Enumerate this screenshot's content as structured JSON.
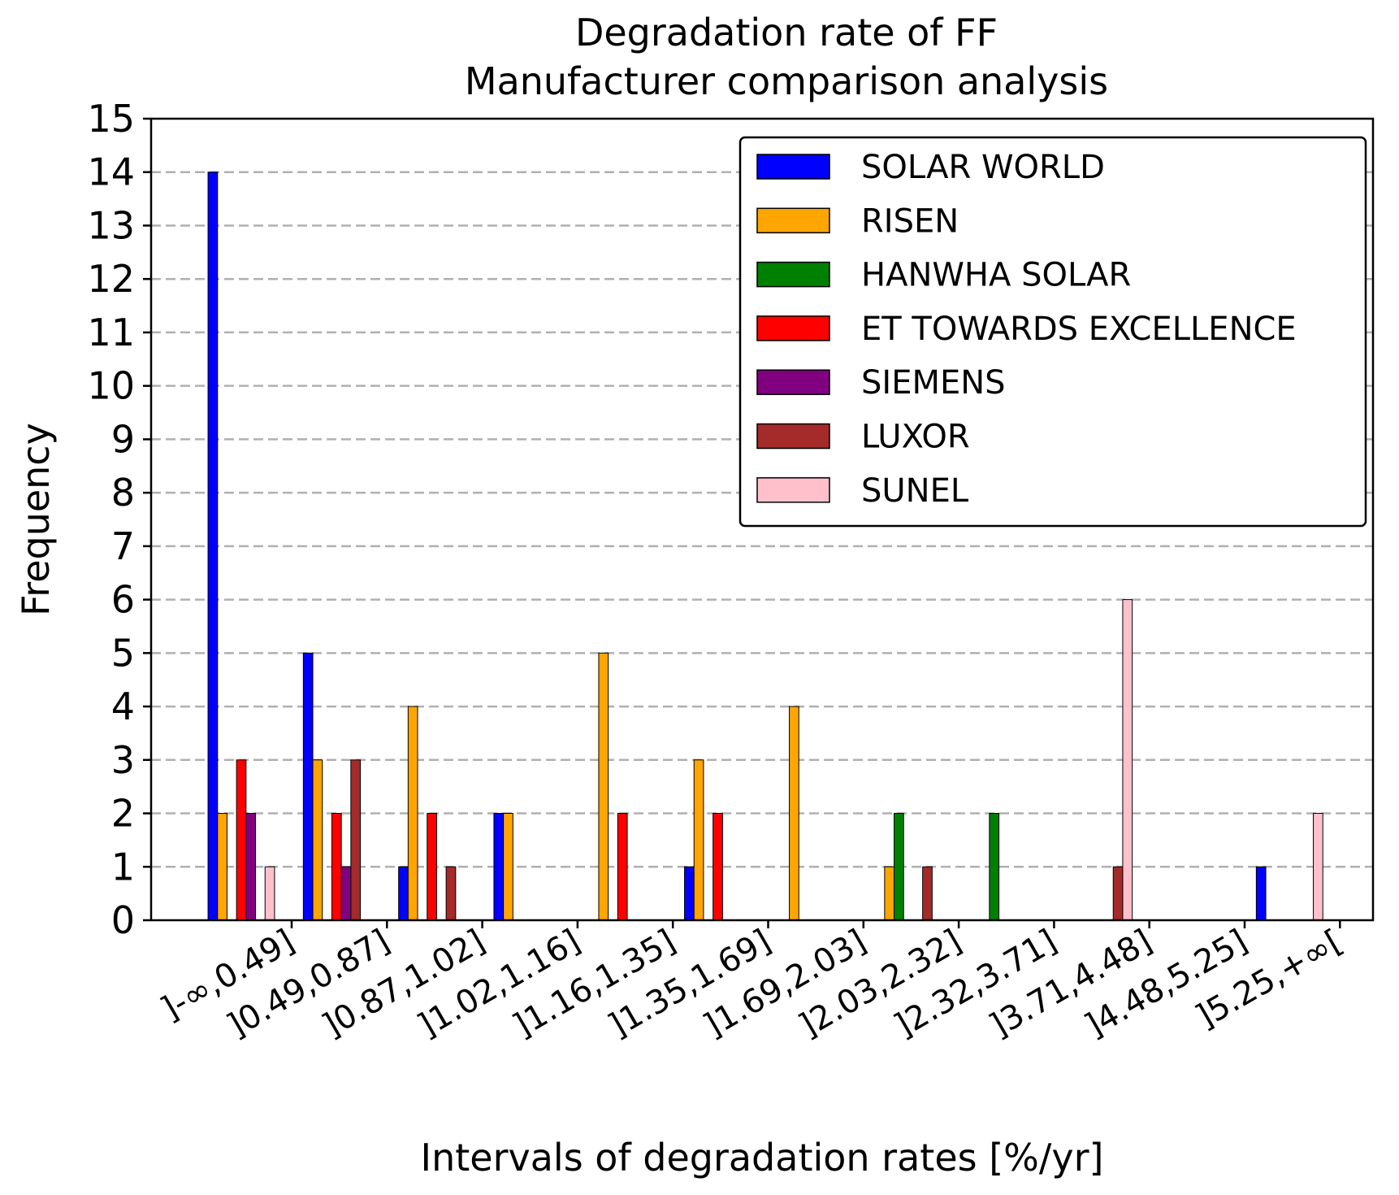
{
  "chart_data": {
    "type": "bar",
    "title_line1": "Degradation rate of FF",
    "title_line2": "Manufacturer comparison analysis",
    "xlabel": "Intervals of degradation rates [%/yr]",
    "ylabel": "Frequency",
    "ylim": [
      0,
      15
    ],
    "yticks": [
      0,
      1,
      2,
      3,
      4,
      5,
      6,
      7,
      8,
      9,
      10,
      11,
      12,
      13,
      14,
      15
    ],
    "grid": "horizontal dashed",
    "legend_position": "top-right",
    "categories": [
      "]-∞,0.49]",
      "]0.49,0.87]",
      "]0.87,1.02]",
      "]1.02,1.16]",
      "]1.16,1.35]",
      "]1.35,1.69]",
      "]1.69,2.03]",
      "]2.03,2.32]",
      "]2.32,3.71]",
      "]3.71,4.48]",
      "]4.48,5.25]",
      "]5.25,+∞["
    ],
    "series": [
      {
        "name": "SOLAR WORLD",
        "color": "#0000ff",
        "values": [
          14,
          5,
          1,
          2,
          0,
          1,
          0,
          0,
          0,
          0,
          0,
          1
        ]
      },
      {
        "name": "RISEN",
        "color": "#ffa500",
        "values": [
          2,
          3,
          4,
          2,
          5,
          3,
          4,
          1,
          0,
          0,
          0,
          0
        ]
      },
      {
        "name": "HANWHA SOLAR",
        "color": "#008000",
        "values": [
          0,
          0,
          0,
          0,
          0,
          0,
          0,
          2,
          2,
          0,
          0,
          0
        ]
      },
      {
        "name": "ET TOWARDS EXCELLENCE",
        "color": "#ff0000",
        "values": [
          3,
          2,
          2,
          0,
          2,
          2,
          0,
          0,
          0,
          0,
          0,
          0
        ]
      },
      {
        "name": "SIEMENS",
        "color": "#800080",
        "values": [
          2,
          1,
          0,
          0,
          0,
          0,
          0,
          0,
          0,
          0,
          0,
          0
        ]
      },
      {
        "name": "LUXOR",
        "color": "#a52a2a",
        "values": [
          0,
          3,
          1,
          0,
          0,
          0,
          0,
          1,
          0,
          1,
          0,
          0
        ]
      },
      {
        "name": "SUNEL",
        "color": "#ffc0cb",
        "values": [
          1,
          0,
          0,
          0,
          0,
          0,
          0,
          0,
          0,
          6,
          0,
          2
        ]
      }
    ]
  }
}
